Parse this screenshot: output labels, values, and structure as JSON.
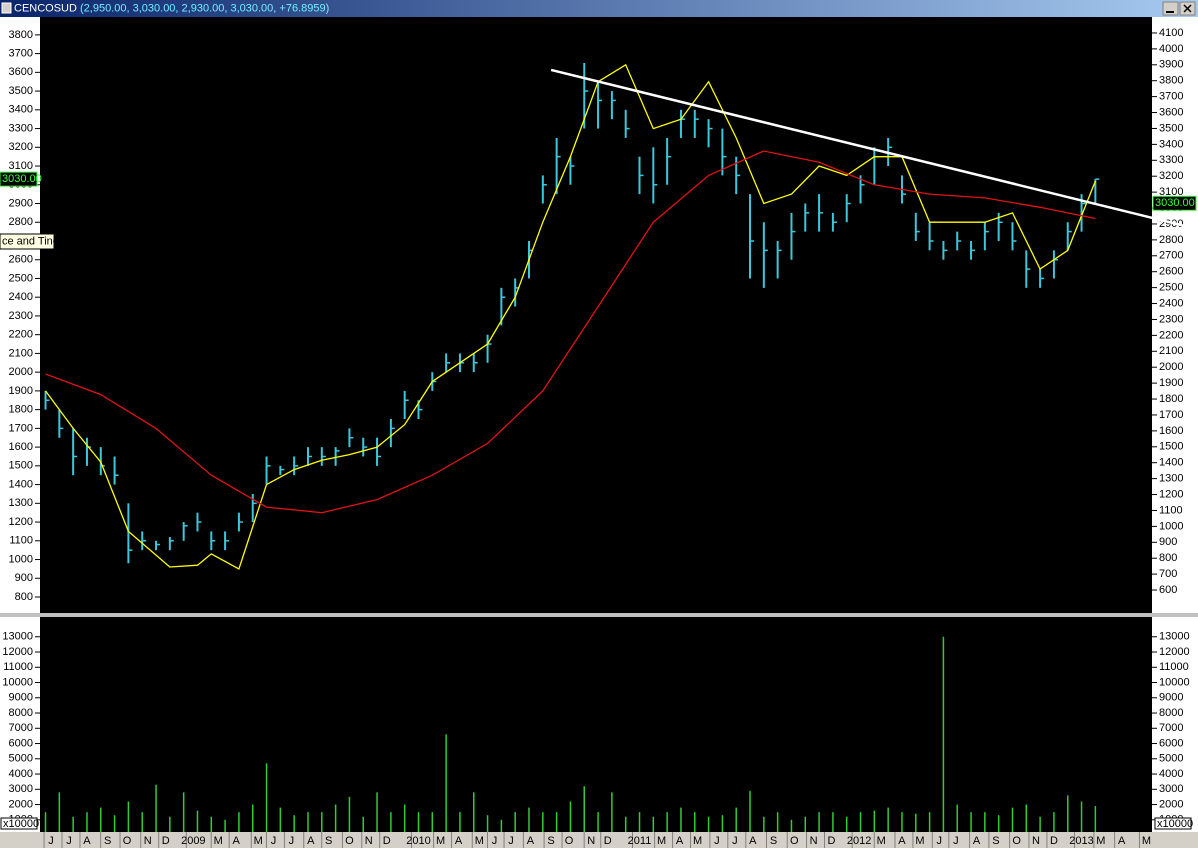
{
  "title_bar": {
    "symbol": "CENCOSUD",
    "quote": "(2,950.00, 3,030.00, 2,930.00, 3,030.00, +76.8959)"
  },
  "tooltip": "ce and Tine",
  "chart_data": [
    {
      "type": "ohlc",
      "color": "#3cc8dc",
      "xlim": [
        -0.4,
        80.1
      ],
      "ylim": [
        720,
        3890
      ],
      "yticks": [
        800,
        900,
        1000,
        1100,
        1200,
        1300,
        1400,
        1500,
        1600,
        1700,
        1800,
        1900,
        2000,
        2100,
        2200,
        2300,
        2400,
        2500,
        2600,
        2700,
        2800,
        2900,
        3000,
        3100,
        3200,
        3300,
        3400,
        3500,
        3600,
        3700,
        3800
      ],
      "y2lim": [
        462,
        4194
      ],
      "y2ticks": [
        600,
        700,
        800,
        900,
        1000,
        1100,
        1200,
        1300,
        1400,
        1500,
        1600,
        1700,
        1800,
        1900,
        2000,
        2100,
        2200,
        2300,
        2400,
        2500,
        2600,
        2700,
        2800,
        2900,
        3000,
        3100,
        3200,
        3300,
        3400,
        3500,
        3600,
        3700,
        3800,
        3900,
        4000,
        4100
      ],
      "high": [
        1900,
        1800,
        1700,
        1650,
        1600,
        1550,
        1300,
        1150,
        1100,
        1120,
        1200,
        1250,
        1150,
        1150,
        1250,
        1350,
        1550,
        1500,
        1550,
        1600,
        1600,
        1600,
        1700,
        1650,
        1650,
        1750,
        1900,
        1850,
        2000,
        2100,
        2100,
        2100,
        2200,
        2450,
        2500,
        2700,
        3050,
        3250,
        3150,
        3650,
        3550,
        3500,
        3400,
        3150,
        3200,
        3250,
        3400,
        3400,
        3350,
        3300,
        3150,
        2950,
        2800,
        2700,
        2850,
        2900,
        2950,
        2850,
        2950,
        3050,
        3200,
        3250,
        3050,
        2850,
        2800,
        2700,
        2750,
        2700,
        2800,
        2850,
        2800,
        2650,
        2550,
        2650,
        2800,
        2950,
        3030
      ],
      "low": [
        1800,
        1650,
        1450,
        1500,
        1450,
        1400,
        980,
        1050,
        1050,
        1050,
        1100,
        1150,
        1050,
        1050,
        1150,
        1200,
        1400,
        1450,
        1450,
        1500,
        1500,
        1500,
        1600,
        1550,
        1500,
        1600,
        1750,
        1750,
        1900,
        2000,
        2000,
        2000,
        2050,
        2250,
        2350,
        2500,
        2900,
        2950,
        3000,
        3300,
        3300,
        3350,
        3250,
        2950,
        2900,
        3000,
        3250,
        3250,
        3200,
        3050,
        2950,
        2500,
        2450,
        2500,
        2600,
        2750,
        2750,
        2750,
        2800,
        2900,
        3000,
        3100,
        2900,
        2700,
        2650,
        2600,
        2650,
        2600,
        2650,
        2700,
        2650,
        2450,
        2450,
        2500,
        2650,
        2750,
        2900
      ],
      "close": [
        1850,
        1700,
        1550,
        1600,
        1500,
        1450,
        1050,
        1100,
        1080,
        1100,
        1180,
        1200,
        1100,
        1100,
        1200,
        1300,
        1500,
        1480,
        1500,
        1550,
        1550,
        1580,
        1650,
        1600,
        1550,
        1700,
        1850,
        1800,
        1950,
        2050,
        2050,
        2050,
        2150,
        2400,
        2450,
        2650,
        3000,
        3150,
        3100,
        3500,
        3450,
        3450,
        3300,
        3050,
        3000,
        3150,
        3350,
        3350,
        3300,
        3150,
        3050,
        2700,
        2650,
        2650,
        2750,
        2850,
        2850,
        2800,
        2900,
        3000,
        3150,
        3200,
        2950,
        2750,
        2700,
        2650,
        2700,
        2650,
        2750,
        2800,
        2700,
        2550,
        2500,
        2600,
        2750,
        2900,
        3030
      ],
      "overlays": [
        {
          "color": "#ffff00",
          "x": [
            0,
            2,
            4,
            6,
            9,
            11,
            12,
            14,
            16,
            18,
            20,
            22,
            24,
            26,
            28,
            30,
            32,
            34,
            36,
            38,
            40,
            42,
            44,
            46,
            48,
            50,
            52,
            54,
            56,
            58,
            60,
            62,
            64,
            66,
            68,
            70,
            72,
            74,
            76
          ],
          "values": [
            1900,
            1700,
            1520,
            1150,
            960,
            970,
            1030,
            950,
            1400,
            1480,
            1530,
            1560,
            1600,
            1720,
            1950,
            2050,
            2150,
            2400,
            2800,
            3150,
            3550,
            3640,
            3300,
            3350,
            3550,
            3250,
            2900,
            2950,
            3100,
            3050,
            3150,
            3150,
            2800,
            2800,
            2800,
            2850,
            2550,
            2650,
            3020
          ]
        },
        {
          "color": "#e01414",
          "x": [
            0,
            4,
            8,
            12,
            16,
            20,
            24,
            28,
            32,
            36,
            40,
            44,
            48,
            52,
            56,
            60,
            64,
            68,
            72,
            76
          ],
          "values": [
            1990,
            1880,
            1700,
            1450,
            1280,
            1250,
            1320,
            1450,
            1620,
            1900,
            2350,
            2800,
            3050,
            3180,
            3120,
            3000,
            2950,
            2930,
            2880,
            2820
          ]
        }
      ],
      "trendline": {
        "color": "#ffffff",
        "x": [
          36.6,
          82.5
        ],
        "values": [
          3613,
          2780
        ]
      },
      "markers": [
        {
          "value": 3030,
          "label": "3030.00"
        },
        {
          "value": 3030,
          "label": "3030.00",
          "axis": "y2"
        }
      ]
    },
    {
      "type": "bar",
      "color": "#33cc33",
      "xlim": [
        -0.4,
        80.1
      ],
      "ylim": [
        200,
        14230
      ],
      "yticks": [
        1000,
        2000,
        3000,
        4000,
        5000,
        6000,
        7000,
        8000,
        9000,
        10000,
        11000,
        12000,
        13000
      ],
      "multiplier": "x10000",
      "values": [
        1500,
        2800,
        1200,
        1500,
        1800,
        1300,
        2200,
        1500,
        3300,
        1200,
        2800,
        1600,
        1200,
        1000,
        1500,
        2000,
        4700,
        1800,
        1300,
        1500,
        1500,
        2000,
        2500,
        1200,
        2800,
        1500,
        2000,
        1500,
        1500,
        6600,
        1500,
        2800,
        1300,
        1000,
        1500,
        1800,
        1500,
        1500,
        2200,
        3200,
        1500,
        2800,
        1200,
        1500,
        1200,
        1500,
        1800,
        1500,
        1200,
        1300,
        1800,
        2900,
        1200,
        1500,
        1000,
        1200,
        1500,
        1500,
        1200,
        1500,
        1600,
        1800,
        1500,
        1400,
        1500,
        13000,
        2000,
        1500,
        1500,
        1300,
        1800,
        2000,
        1200,
        1500,
        2600,
        2200,
        1900
      ],
      "xticks": [
        {
          "value": 0.4,
          "label": "J"
        },
        {
          "value": 1.7,
          "label": "J"
        },
        {
          "value": 3.0,
          "label": "A"
        },
        {
          "value": 4.5,
          "label": "S"
        },
        {
          "value": 5.9,
          "label": "O"
        },
        {
          "value": 7.4,
          "label": "N"
        },
        {
          "value": 8.7,
          "label": "D"
        },
        {
          "value": 10.7,
          "label": "2009"
        },
        {
          "value": 12.5,
          "label": "M"
        },
        {
          "value": 13.8,
          "label": "A"
        },
        {
          "value": 15.4,
          "label": "M"
        },
        {
          "value": 16.5,
          "label": "J"
        },
        {
          "value": 17.8,
          "label": "J"
        },
        {
          "value": 19.2,
          "label": "A"
        },
        {
          "value": 20.5,
          "label": "S"
        },
        {
          "value": 22.0,
          "label": "O"
        },
        {
          "value": 23.4,
          "label": "N"
        },
        {
          "value": 24.7,
          "label": "D"
        },
        {
          "value": 27.0,
          "label": "2010"
        },
        {
          "value": 28.6,
          "label": "M"
        },
        {
          "value": 29.9,
          "label": "A"
        },
        {
          "value": 31.4,
          "label": "M"
        },
        {
          "value": 32.5,
          "label": "J"
        },
        {
          "value": 33.7,
          "label": "J"
        },
        {
          "value": 35.1,
          "label": "A"
        },
        {
          "value": 36.6,
          "label": "S"
        },
        {
          "value": 37.9,
          "label": "O"
        },
        {
          "value": 39.5,
          "label": "N"
        },
        {
          "value": 40.7,
          "label": "D"
        },
        {
          "value": 43.0,
          "label": "2011"
        },
        {
          "value": 44.6,
          "label": "M"
        },
        {
          "value": 45.9,
          "label": "A"
        },
        {
          "value": 47.2,
          "label": "M"
        },
        {
          "value": 48.6,
          "label": "J"
        },
        {
          "value": 49.9,
          "label": "J"
        },
        {
          "value": 51.2,
          "label": "A"
        },
        {
          "value": 52.7,
          "label": "S"
        },
        {
          "value": 54.2,
          "label": "O"
        },
        {
          "value": 55.6,
          "label": "N"
        },
        {
          "value": 56.9,
          "label": "D"
        },
        {
          "value": 58.9,
          "label": "2012"
        },
        {
          "value": 60.5,
          "label": "M"
        },
        {
          "value": 62.0,
          "label": "A"
        },
        {
          "value": 63.3,
          "label": "M"
        },
        {
          "value": 64.7,
          "label": "J"
        },
        {
          "value": 65.9,
          "label": "J"
        },
        {
          "value": 67.4,
          "label": "A"
        },
        {
          "value": 68.8,
          "label": "S"
        },
        {
          "value": 70.3,
          "label": "O"
        },
        {
          "value": 71.7,
          "label": "N"
        },
        {
          "value": 73.0,
          "label": "D"
        },
        {
          "value": 75.0,
          "label": "2013"
        },
        {
          "value": 76.4,
          "label": "M"
        },
        {
          "value": 77.9,
          "label": "A"
        },
        {
          "value": 79.7,
          "label": "M"
        }
      ]
    }
  ]
}
